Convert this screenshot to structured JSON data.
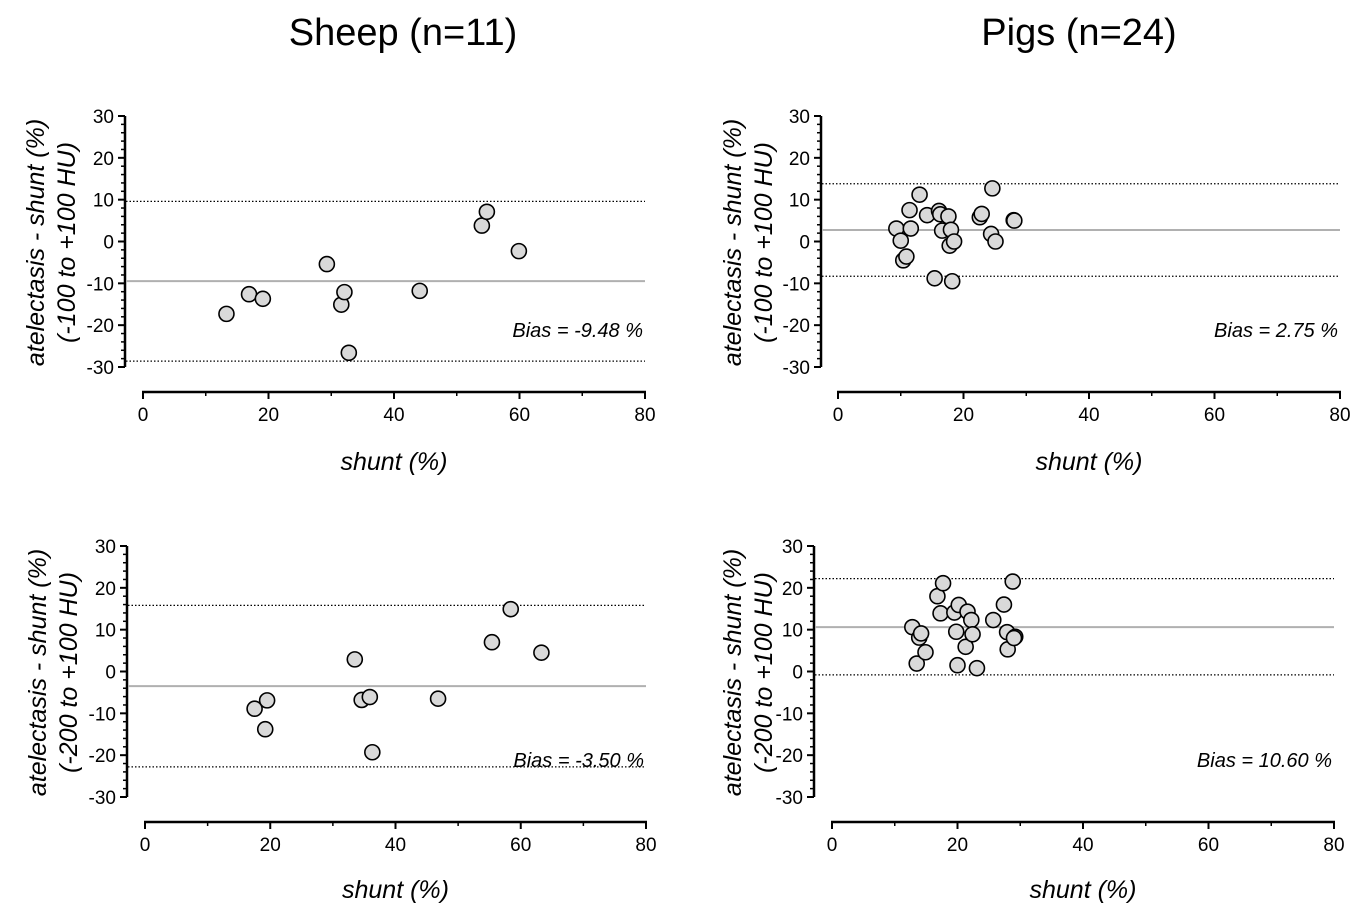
{
  "column_titles": [
    "Sheep (n=11)",
    "Pigs (n=24)"
  ],
  "colors": {
    "marker_fill": "#d9d9d9",
    "marker_stroke": "#000000",
    "bias_line": "#b0b0b0",
    "loa_line": "#000000",
    "axis": "#000000"
  },
  "chart_data": [
    {
      "type": "scatter",
      "panel": "sheep-narrow-range",
      "title": "Sheep (n=11)",
      "xlabel": "shunt (%)",
      "ylabel": [
        "atelectasis - shunt (%)",
        "(-100 to +100 HU)"
      ],
      "xlim": [
        0,
        80
      ],
      "ylim": [
        -30,
        30
      ],
      "xticks": [
        0,
        20,
        40,
        60,
        80
      ],
      "yticks": [
        -30,
        -20,
        -10,
        0,
        10,
        20,
        30
      ],
      "grid": false,
      "bias": -9.48,
      "loa_upper": 9.6,
      "loa_lower": -28.6,
      "annotation": "Bias = -9.48 %",
      "points": [
        [
          13.3,
          -17.3
        ],
        [
          16.9,
          -12.6
        ],
        [
          19.1,
          -13.7
        ],
        [
          29.3,
          -5.4
        ],
        [
          31.6,
          -15.1
        ],
        [
          32.1,
          -12.1
        ],
        [
          32.8,
          -26.6
        ],
        [
          44.1,
          -11.8
        ],
        [
          54.0,
          3.8
        ],
        [
          54.8,
          7.1
        ],
        [
          59.9,
          -2.3
        ]
      ]
    },
    {
      "type": "scatter",
      "panel": "pigs-narrow-range",
      "title": "Pigs (n=24)",
      "xlabel": "shunt (%)",
      "ylabel": [
        "atelectasis - shunt (%)",
        "(-100 to +100 HU)"
      ],
      "xlim": [
        0,
        80
      ],
      "ylim": [
        -30,
        30
      ],
      "xticks": [
        0,
        20,
        40,
        60,
        80
      ],
      "yticks": [
        -30,
        -20,
        -10,
        0,
        10,
        20,
        30
      ],
      "grid": false,
      "bias": 2.75,
      "loa_upper": 13.8,
      "loa_lower": -8.3,
      "annotation": "Bias = 2.75 %",
      "points": [
        [
          9.3,
          3.1
        ],
        [
          10.0,
          0.2
        ],
        [
          10.4,
          -4.5
        ],
        [
          10.9,
          -3.6
        ],
        [
          11.4,
          7.5
        ],
        [
          11.6,
          3.1
        ],
        [
          13.0,
          11.2
        ],
        [
          14.2,
          6.3
        ],
        [
          15.4,
          -8.8
        ],
        [
          16.1,
          7.3
        ],
        [
          16.3,
          6.5
        ],
        [
          16.6,
          2.6
        ],
        [
          17.6,
          6.0
        ],
        [
          17.8,
          -1.0
        ],
        [
          18.0,
          2.8
        ],
        [
          18.2,
          -9.5
        ],
        [
          18.5,
          0.0
        ],
        [
          22.6,
          5.8
        ],
        [
          22.9,
          6.6
        ],
        [
          24.4,
          1.8
        ],
        [
          24.6,
          12.7
        ],
        [
          25.1,
          0.0
        ],
        [
          28.0,
          5.1
        ],
        [
          28.1,
          5.0
        ]
      ]
    },
    {
      "type": "scatter",
      "panel": "sheep-wide-range",
      "xlabel": "shunt (%)",
      "ylabel": [
        "atelectasis - shunt (%)",
        "(-200 to +100 HU)"
      ],
      "xlim": [
        0,
        80
      ],
      "ylim": [
        -30,
        30
      ],
      "xticks": [
        0,
        20,
        40,
        60,
        80
      ],
      "yticks": [
        -30,
        -20,
        -10,
        0,
        10,
        20,
        30
      ],
      "grid": false,
      "bias": -3.5,
      "loa_upper": 15.8,
      "loa_lower": -22.8,
      "annotation": "Bias = -3.50 %",
      "points": [
        [
          17.5,
          -8.9
        ],
        [
          19.2,
          -13.8
        ],
        [
          19.5,
          -6.9
        ],
        [
          33.5,
          2.9
        ],
        [
          34.6,
          -6.8
        ],
        [
          35.9,
          -6.1
        ],
        [
          36.3,
          -19.3
        ],
        [
          46.8,
          -6.5
        ],
        [
          55.4,
          7.0
        ],
        [
          58.4,
          14.9
        ],
        [
          63.3,
          4.5
        ]
      ]
    },
    {
      "type": "scatter",
      "panel": "pigs-wide-range",
      "xlabel": "shunt (%)",
      "ylabel": [
        "atelectasis - shunt (%)",
        "(-200 to +100 HU)"
      ],
      "xlim": [
        0,
        80
      ],
      "ylim": [
        -30,
        30
      ],
      "xticks": [
        0,
        20,
        40,
        60,
        80
      ],
      "yticks": [
        -30,
        -20,
        -10,
        0,
        10,
        20,
        30
      ],
      "grid": false,
      "bias": 10.6,
      "loa_upper": 22.2,
      "loa_lower": -0.8,
      "annotation": "Bias = 10.60 %",
      "points": [
        [
          12.8,
          10.6
        ],
        [
          13.5,
          1.9
        ],
        [
          13.9,
          8.1
        ],
        [
          14.2,
          9.1
        ],
        [
          14.9,
          4.6
        ],
        [
          16.8,
          18.0
        ],
        [
          17.3,
          13.9
        ],
        [
          17.7,
          21.1
        ],
        [
          19.5,
          14.1
        ],
        [
          19.8,
          9.5
        ],
        [
          20.0,
          1.5
        ],
        [
          20.2,
          15.9
        ],
        [
          21.3,
          5.9
        ],
        [
          21.6,
          14.3
        ],
        [
          22.2,
          12.3
        ],
        [
          22.4,
          8.9
        ],
        [
          23.1,
          0.8
        ],
        [
          25.7,
          12.3
        ],
        [
          27.4,
          16.0
        ],
        [
          27.9,
          9.4
        ],
        [
          28.0,
          5.3
        ],
        [
          28.8,
          21.5
        ],
        [
          29.2,
          8.3
        ],
        [
          29.0,
          8.0
        ]
      ]
    }
  ]
}
